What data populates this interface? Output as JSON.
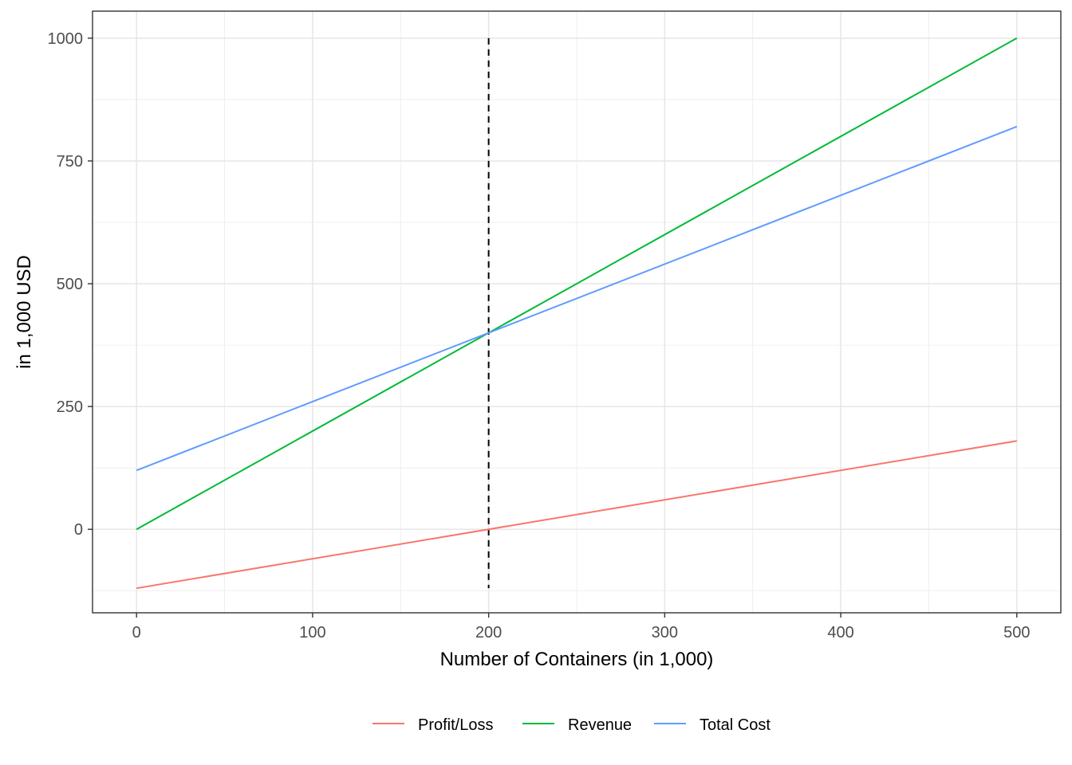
{
  "chart_data": {
    "type": "line",
    "title": "",
    "xlabel": "Number of Containers (in 1,000)",
    "ylabel": "in 1,000 USD",
    "xlim": [
      -25,
      525
    ],
    "ylim": [
      -170,
      1055
    ],
    "x_ticks": [
      0,
      100,
      200,
      300,
      400,
      500
    ],
    "x_tick_labels": [
      "0",
      "100",
      "200",
      "300",
      "400",
      "500"
    ],
    "y_ticks": [
      0,
      250,
      500,
      750,
      1000
    ],
    "y_tick_labels": [
      "0",
      "250",
      "500",
      "750",
      "1000"
    ],
    "x_minor": [
      50,
      150,
      250,
      350,
      450
    ],
    "y_minor": [
      -125,
      125,
      375,
      625,
      875
    ],
    "grid": true,
    "legend_position": "bottom",
    "series": [
      {
        "name": "Profit/Loss",
        "color": "#F8766D",
        "x": [
          0,
          500
        ],
        "y": [
          -120,
          180
        ]
      },
      {
        "name": "Revenue",
        "color": "#00BA38",
        "x": [
          0,
          500
        ],
        "y": [
          0,
          1000
        ]
      },
      {
        "name": "Total Cost",
        "color": "#619CFF",
        "x": [
          0,
          500
        ],
        "y": [
          120,
          820
        ]
      }
    ],
    "annotations": [
      {
        "type": "vline",
        "x": 200,
        "y_from": -120,
        "y_to": 1000,
        "style": "dashed",
        "color": "#000000"
      }
    ]
  }
}
